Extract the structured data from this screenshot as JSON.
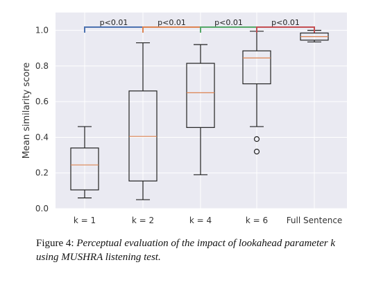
{
  "chart_data": {
    "type": "boxplot",
    "ylabel": "Mean similarity score",
    "ylim": [
      0.0,
      1.1
    ],
    "yticks": [
      "0.0",
      "0.2",
      "0.4",
      "0.6",
      "0.8",
      "1.0"
    ],
    "categories": [
      "k = 1",
      "k = 2",
      "k = 4",
      "k = 6",
      "Full Sentence"
    ],
    "boxes": [
      {
        "whislo": 0.06,
        "q1": 0.105,
        "med": 0.245,
        "q3": 0.34,
        "whishi": 0.46,
        "fliers": []
      },
      {
        "whislo": 0.05,
        "q1": 0.155,
        "med": 0.405,
        "q3": 0.66,
        "whishi": 0.93,
        "fliers": []
      },
      {
        "whislo": 0.19,
        "q1": 0.455,
        "med": 0.65,
        "q3": 0.815,
        "whishi": 0.92,
        "fliers": []
      },
      {
        "whislo": 0.46,
        "q1": 0.7,
        "med": 0.845,
        "q3": 0.885,
        "whishi": 0.995,
        "fliers": [
          0.39,
          0.32
        ]
      },
      {
        "whislo": 0.935,
        "q1": 0.945,
        "med": 0.965,
        "q3": 0.985,
        "whishi": 1.0,
        "fliers": []
      }
    ],
    "annotations": [
      {
        "from": 0,
        "to": 1,
        "text": "p<0.01",
        "color": "#4c72b0"
      },
      {
        "from": 1,
        "to": 2,
        "text": "p<0.01",
        "color": "#dd8452"
      },
      {
        "from": 2,
        "to": 3,
        "text": "p<0.01",
        "color": "#55a868"
      },
      {
        "from": 3,
        "to": 4,
        "text": "p<0.01",
        "color": "#c44e52"
      }
    ],
    "colors": {
      "background": "#eaeaf2",
      "grid": "#ffffff",
      "box": "#222222",
      "median": "#dd8452"
    },
    "grid": true
  },
  "caption": {
    "prefix": "Figure 4:",
    "text": "Perceptual evaluation of the impact of lookahead parameter k using MUSHRA listening test."
  }
}
